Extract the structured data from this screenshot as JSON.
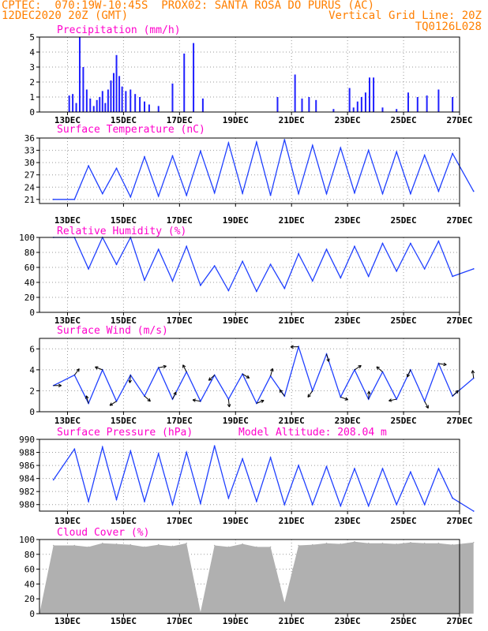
{
  "header": {
    "line1_left": "CPTEC:  070:19W-10:45S  PROX02: SANTA ROSA DO PURUS (AC)",
    "line2_left": "12DEC2020 20Z (GMT)",
    "line2_right": "Vertical Grid Line: 20Z",
    "line3_right": "TQ0126L028"
  },
  "colors": {
    "header": "#ff7f00",
    "title": "#ff00cc",
    "line": "#2040ff",
    "bar": "#2020ff",
    "cloud": "#b0b0b0",
    "grid": "#9a9a9a"
  },
  "x_ticks": [
    "13DEC",
    "15DEC",
    "17DEC",
    "19DEC",
    "21DEC",
    "23DEC",
    "25DEC",
    "27DEC"
  ],
  "chart_data": [
    {
      "type": "bar",
      "title": "Precipitation (mm/h)",
      "ylim": [
        0,
        5
      ],
      "yticks": [
        "0",
        "1",
        "2",
        "3",
        "4",
        "5"
      ],
      "x": [
        "13DEC",
        "13DEC",
        "13DEC",
        "13DEC",
        "13DEC",
        "13DEC",
        "13DEC",
        "13DEC",
        "14DEC",
        "14DEC",
        "14DEC",
        "14DEC",
        "14DEC",
        "14DEC",
        "14DEC",
        "14DEC",
        "14DEC",
        "14DEC",
        "15DEC",
        "15DEC",
        "15DEC",
        "15DEC",
        "15DEC",
        "15DEC",
        "16DEC",
        "16DEC",
        "17DEC",
        "17DEC",
        "17DEC",
        "20DEC",
        "21DEC",
        "21DEC",
        "21DEC",
        "21DEC",
        "22DEC",
        "23DEC",
        "23DEC",
        "23DEC",
        "23DEC",
        "23DEC",
        "23DEC",
        "23DEC",
        "24DEC",
        "24DEC",
        "25DEC",
        "25DEC",
        "25DEC",
        "26DEC",
        "26DEC"
      ],
      "values": [
        1.1,
        1.2,
        0.6,
        5.0,
        3.0,
        1.5,
        0.9,
        0.4,
        0.8,
        1.0,
        1.4,
        0.6,
        1.5,
        2.1,
        2.6,
        3.8,
        2.4,
        1.7,
        1.4,
        1.5,
        1.2,
        1.0,
        0.7,
        0.5,
        0.4,
        1.9,
        3.9,
        4.6,
        0.9,
        1.0,
        2.5,
        0.9,
        1.0,
        0.8,
        0.2,
        1.6,
        0.3,
        0.7,
        1.0,
        1.3,
        2.3,
        2.3,
        0.3,
        0.2,
        1.3,
        1.0,
        1.1,
        1.5,
        1.0
      ]
    },
    {
      "type": "line",
      "title": "Surface Temperature (nC)",
      "ylim": [
        20,
        36
      ],
      "yticks": [
        "21",
        "24",
        "27",
        "30",
        "33",
        "36"
      ],
      "x": [
        "12DEC",
        "13DEC",
        "13DEC",
        "14DEC",
        "14DEC",
        "15DEC",
        "15DEC",
        "16DEC",
        "16DEC",
        "17DEC",
        "17DEC",
        "18DEC",
        "18DEC",
        "19DEC",
        "19DEC",
        "20DEC",
        "20DEC",
        "21DEC",
        "21DEC",
        "22DEC",
        "22DEC",
        "23DEC",
        "23DEC",
        "24DEC",
        "24DEC",
        "25DEC",
        "25DEC",
        "26DEC",
        "26DEC",
        "27DEC"
      ],
      "values": [
        21.0,
        21.0,
        29.2,
        22.4,
        28.6,
        21.6,
        31.4,
        21.8,
        31.6,
        22.0,
        32.8,
        22.6,
        34.8,
        22.5,
        35.0,
        22.0,
        35.6,
        22.4,
        34.2,
        22.4,
        33.6,
        22.6,
        33.0,
        22.4,
        32.6,
        22.4,
        31.8,
        23.0,
        32.2,
        23.0
      ]
    },
    {
      "type": "line",
      "title": "Relative Humidity (%)",
      "ylim": [
        0,
        100
      ],
      "yticks": [
        "0",
        "20",
        "40",
        "60",
        "80",
        "100"
      ],
      "x": [
        "12DEC",
        "13DEC",
        "13DEC",
        "14DEC",
        "14DEC",
        "15DEC",
        "15DEC",
        "16DEC",
        "16DEC",
        "17DEC",
        "17DEC",
        "18DEC",
        "18DEC",
        "19DEC",
        "19DEC",
        "20DEC",
        "20DEC",
        "21DEC",
        "21DEC",
        "22DEC",
        "22DEC",
        "23DEC",
        "23DEC",
        "24DEC",
        "24DEC",
        "25DEC",
        "25DEC",
        "26DEC",
        "26DEC",
        "27DEC"
      ],
      "values": [
        100,
        100,
        58,
        100,
        64,
        100,
        43,
        84,
        42,
        88,
        36,
        62,
        29,
        68,
        28,
        64,
        32,
        78,
        42,
        84,
        46,
        88,
        48,
        92,
        55,
        92,
        58,
        95,
        48,
        58
      ]
    },
    {
      "type": "line",
      "title": "Surface Wind (m/s)",
      "ylim": [
        0,
        7
      ],
      "yticks": [
        "0",
        "2",
        "4",
        "6"
      ],
      "x": [
        "12DEC",
        "13DEC",
        "13DEC",
        "14DEC",
        "14DEC",
        "15DEC",
        "15DEC",
        "16DEC",
        "16DEC",
        "17DEC",
        "17DEC",
        "18DEC",
        "18DEC",
        "19DEC",
        "19DEC",
        "20DEC",
        "20DEC",
        "21DEC",
        "21DEC",
        "22DEC",
        "22DEC",
        "23DEC",
        "23DEC",
        "24DEC",
        "24DEC",
        "25DEC",
        "25DEC",
        "26DEC",
        "26DEC",
        "27DEC"
      ],
      "values": [
        2.5,
        3.5,
        0.8,
        4.0,
        1.0,
        3.5,
        1.5,
        4.2,
        1.2,
        3.8,
        1.0,
        3.5,
        1.2,
        3.6,
        0.8,
        3.4,
        1.5,
        6.2,
        2.0,
        5.5,
        1.4,
        4.0,
        1.2,
        3.8,
        1.2,
        4.0,
        1.0,
        4.6,
        1.5,
        3.2
      ]
    },
    {
      "type": "line",
      "title": "Surface Pressure (hPa)",
      "annotation": "Model Altitude: 208.04 m",
      "ylim": [
        979,
        990
      ],
      "yticks": [
        "980",
        "982",
        "984",
        "986",
        "988",
        "990"
      ],
      "x": [
        "12DEC",
        "13DEC",
        "13DEC",
        "14DEC",
        "14DEC",
        "15DEC",
        "15DEC",
        "16DEC",
        "16DEC",
        "17DEC",
        "17DEC",
        "18DEC",
        "18DEC",
        "19DEC",
        "19DEC",
        "20DEC",
        "20DEC",
        "21DEC",
        "21DEC",
        "22DEC",
        "22DEC",
        "23DEC",
        "23DEC",
        "24DEC",
        "24DEC",
        "25DEC",
        "25DEC",
        "26DEC",
        "26DEC",
        "27DEC"
      ],
      "values": [
        983.8,
        988.5,
        980.5,
        988.8,
        980.8,
        988.2,
        980.5,
        987.8,
        980.0,
        988.0,
        980.2,
        989.0,
        981.0,
        987.0,
        980.5,
        987.2,
        980.0,
        986.0,
        980.0,
        985.8,
        979.8,
        985.5,
        979.8,
        985.5,
        980.0,
        985.0,
        980.0,
        985.5,
        981.0,
        979.0
      ]
    },
    {
      "type": "area",
      "title": "Cloud Cover (%)",
      "ylim": [
        0,
        100
      ],
      "yticks": [
        "0",
        "20",
        "40",
        "60",
        "80",
        "100"
      ],
      "x": [
        "12DEC",
        "13DEC",
        "13DEC",
        "14DEC",
        "14DEC",
        "15DEC",
        "15DEC",
        "16DEC",
        "16DEC",
        "17DEC",
        "17DEC",
        "18DEC",
        "18DEC",
        "19DEC",
        "19DEC",
        "20DEC",
        "20DEC",
        "21DEC",
        "21DEC",
        "22DEC",
        "22DEC",
        "23DEC",
        "23DEC",
        "24DEC",
        "24DEC",
        "25DEC",
        "25DEC",
        "26DEC",
        "26DEC",
        "27DEC"
      ],
      "values": [
        92,
        92,
        90,
        95,
        94,
        93,
        90,
        93,
        91,
        95,
        2,
        92,
        90,
        94,
        90,
        90,
        15,
        92,
        93,
        95,
        94,
        97,
        95,
        95,
        94,
        96,
        95,
        95,
        93,
        96
      ]
    }
  ]
}
